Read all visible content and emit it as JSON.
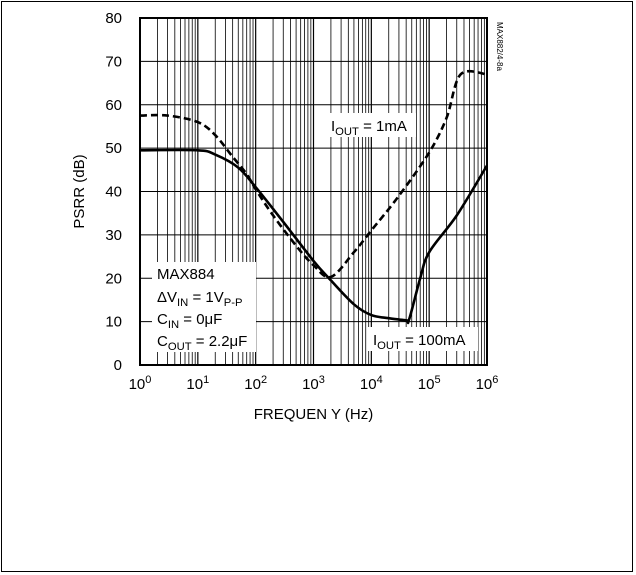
{
  "chart_data": {
    "type": "line",
    "figure_id": "MAX882/4-8a",
    "xlabel": "FREQUEN Y (Hz)",
    "ylabel": "PSRR (dB)",
    "xscale": "log",
    "xlim": [
      1,
      1000000
    ],
    "ylim": [
      0,
      80
    ],
    "yticks": [
      0,
      10,
      20,
      30,
      40,
      50,
      60,
      70,
      80
    ],
    "xticks": [
      {
        "value": 1,
        "base": "10",
        "exp": "0"
      },
      {
        "value": 10,
        "base": "10",
        "exp": "1"
      },
      {
        "value": 100,
        "base": "10",
        "exp": "2"
      },
      {
        "value": 1000,
        "base": "10",
        "exp": "3"
      },
      {
        "value": 10000,
        "base": "10",
        "exp": "4"
      },
      {
        "value": 100000,
        "base": "10",
        "exp": "5"
      },
      {
        "value": 1000000,
        "base": "10",
        "exp": "6"
      }
    ],
    "grid": true,
    "series": [
      {
        "label": {
          "main": "I",
          "sub": "OUT",
          "rest": " = 1mA"
        },
        "style": "dashed",
        "color": "#000000",
        "points": [
          [
            1,
            57.5
          ],
          [
            3,
            57.5
          ],
          [
            10,
            56
          ],
          [
            20,
            53
          ],
          [
            40,
            48
          ],
          [
            70,
            44
          ],
          [
            100,
            40.5
          ],
          [
            200,
            34.5
          ],
          [
            500,
            27.5
          ],
          [
            1000,
            23
          ],
          [
            2000,
            20.3
          ],
          [
            5000,
            26
          ],
          [
            10000,
            31
          ],
          [
            30000,
            39
          ],
          [
            100000,
            49
          ],
          [
            200000,
            57
          ],
          [
            350000,
            67
          ],
          [
            1000000,
            67
          ]
        ]
      },
      {
        "label": {
          "main": "I",
          "sub": "OUT",
          "rest": " = 100mA"
        },
        "style": "solid",
        "color": "#000000",
        "points": [
          [
            1,
            49.5
          ],
          [
            10,
            49.5
          ],
          [
            20,
            48.5
          ],
          [
            50,
            45.5
          ],
          [
            100,
            41
          ],
          [
            300,
            33
          ],
          [
            1000,
            24
          ],
          [
            2000,
            19.5
          ],
          [
            5000,
            14
          ],
          [
            10000,
            11.5
          ],
          [
            20000,
            10.8
          ],
          [
            40000,
            10.3
          ],
          [
            45000,
            10.5
          ],
          [
            70000,
            20
          ],
          [
            100000,
            26
          ],
          [
            300000,
            34.5
          ],
          [
            1000000,
            46
          ]
        ]
      }
    ],
    "annotation_lines": [
      {
        "main": "MAX884",
        "sub": "",
        "rest": ""
      },
      {
        "main": "ΔV",
        "sub": "IN",
        "rest": " = 1V",
        "sub2": "P-P"
      },
      {
        "main": "C",
        "sub": "IN",
        "rest": " = 0μF"
      },
      {
        "main": "C",
        "sub": "OUT",
        "rest": " = 2.2μF"
      }
    ]
  }
}
